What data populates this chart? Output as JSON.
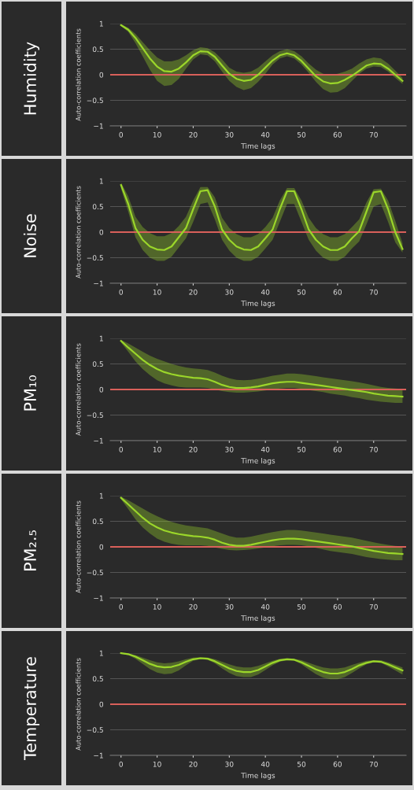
{
  "chart_data": [
    {
      "type": "line",
      "title": "Humidity",
      "xlabel": "Time lags",
      "ylabel": "Auto-correlation coefficients",
      "xlim": [
        -3,
        79
      ],
      "ylim": [
        -1,
        1
      ],
      "xticks": [
        0,
        10,
        20,
        30,
        40,
        50,
        60,
        70
      ],
      "yticks": [
        -1,
        -0.5,
        0,
        0.5,
        1
      ],
      "grid": "y",
      "legend": false,
      "x": [
        0,
        2,
        4,
        6,
        8,
        10,
        12,
        14,
        16,
        18,
        20,
        22,
        24,
        26,
        28,
        30,
        32,
        34,
        36,
        38,
        40,
        42,
        44,
        46,
        48,
        50,
        52,
        54,
        56,
        58,
        60,
        62,
        64,
        66,
        68,
        70,
        72,
        74,
        76,
        78
      ],
      "series": [
        {
          "color": "#9bd62a",
          "values": [
            0.97,
            0.88,
            0.72,
            0.52,
            0.32,
            0.16,
            0.07,
            0.06,
            0.12,
            0.24,
            0.38,
            0.46,
            0.45,
            0.35,
            0.18,
            0.02,
            -0.08,
            -0.12,
            -0.1,
            0.0,
            0.14,
            0.28,
            0.38,
            0.42,
            0.38,
            0.27,
            0.12,
            -0.03,
            -0.13,
            -0.17,
            -0.16,
            -0.1,
            -0.02,
            0.08,
            0.18,
            0.22,
            0.21,
            0.12,
            0.0,
            -0.12
          ],
          "lower": [
            0.95,
            0.84,
            0.62,
            0.36,
            0.1,
            -0.12,
            -0.22,
            -0.2,
            -0.08,
            0.12,
            0.3,
            0.4,
            0.38,
            0.26,
            0.06,
            -0.12,
            -0.24,
            -0.3,
            -0.26,
            -0.14,
            0.02,
            0.2,
            0.32,
            0.36,
            0.32,
            0.2,
            0.04,
            -0.14,
            -0.28,
            -0.35,
            -0.34,
            -0.26,
            -0.12,
            0.02,
            0.12,
            0.16,
            0.15,
            0.06,
            -0.06,
            -0.18
          ],
          "upper": [
            0.99,
            0.92,
            0.8,
            0.64,
            0.48,
            0.34,
            0.26,
            0.26,
            0.3,
            0.38,
            0.48,
            0.54,
            0.52,
            0.44,
            0.3,
            0.14,
            0.06,
            0.04,
            0.06,
            0.14,
            0.26,
            0.38,
            0.46,
            0.5,
            0.46,
            0.36,
            0.22,
            0.1,
            0.02,
            0.0,
            0.02,
            0.06,
            0.12,
            0.22,
            0.3,
            0.34,
            0.32,
            0.22,
            0.08,
            -0.06
          ]
        }
      ],
      "ref_lines": [
        {
          "axis": "y",
          "value": 0,
          "color": "#d9605a"
        }
      ]
    },
    {
      "type": "line",
      "title": "Noise",
      "xlabel": "Time lags",
      "ylabel": "Auto-correlation coefficients",
      "xlim": [
        -3,
        79
      ],
      "ylim": [
        -1,
        1
      ],
      "xticks": [
        0,
        10,
        20,
        30,
        40,
        50,
        60,
        70
      ],
      "yticks": [
        -1,
        -0.5,
        0,
        0.5,
        1
      ],
      "grid": "y",
      "legend": false,
      "x": [
        0,
        2,
        4,
        6,
        8,
        10,
        12,
        14,
        16,
        18,
        20,
        22,
        24,
        26,
        28,
        30,
        32,
        34,
        36,
        38,
        40,
        42,
        44,
        46,
        48,
        50,
        52,
        54,
        56,
        58,
        60,
        62,
        64,
        66,
        68,
        70,
        72,
        74,
        76,
        78
      ],
      "series": [
        {
          "color": "#9bd62a",
          "values": [
            0.92,
            0.55,
            0.08,
            -0.15,
            -0.28,
            -0.34,
            -0.35,
            -0.28,
            -0.1,
            0.08,
            0.45,
            0.8,
            0.82,
            0.5,
            0.05,
            -0.15,
            -0.28,
            -0.34,
            -0.35,
            -0.28,
            -0.12,
            0.05,
            0.45,
            0.8,
            0.8,
            0.45,
            0.05,
            -0.15,
            -0.28,
            -0.35,
            -0.35,
            -0.28,
            -0.12,
            0.02,
            0.4,
            0.78,
            0.8,
            0.45,
            0.0,
            -0.33
          ],
          "lower": [
            0.85,
            0.4,
            -0.1,
            -0.35,
            -0.5,
            -0.56,
            -0.56,
            -0.48,
            -0.3,
            -0.12,
            0.2,
            0.55,
            0.58,
            0.25,
            -0.15,
            -0.36,
            -0.5,
            -0.56,
            -0.56,
            -0.48,
            -0.32,
            -0.15,
            0.2,
            0.55,
            0.55,
            0.2,
            -0.15,
            -0.36,
            -0.5,
            -0.56,
            -0.56,
            -0.48,
            -0.32,
            -0.18,
            0.15,
            0.5,
            0.55,
            0.2,
            -0.2,
            -0.4
          ],
          "upper": [
            0.97,
            0.7,
            0.3,
            0.1,
            -0.02,
            -0.08,
            -0.08,
            -0.02,
            0.12,
            0.3,
            0.62,
            0.88,
            0.88,
            0.68,
            0.28,
            0.08,
            -0.04,
            -0.1,
            -0.1,
            -0.04,
            0.1,
            0.28,
            0.62,
            0.86,
            0.86,
            0.62,
            0.28,
            0.08,
            -0.04,
            -0.1,
            -0.1,
            -0.04,
            0.1,
            0.25,
            0.58,
            0.84,
            0.85,
            0.62,
            0.22,
            -0.22
          ]
        }
      ],
      "ref_lines": [
        {
          "axis": "y",
          "value": 0,
          "color": "#d9605a"
        }
      ]
    },
    {
      "type": "line",
      "title": "PM₁₀",
      "xlabel": "Time lags",
      "ylabel": "Auto-correlation coefficients",
      "xlim": [
        -3,
        79
      ],
      "ylim": [
        -1,
        1
      ],
      "xticks": [
        0,
        10,
        20,
        30,
        40,
        50,
        60,
        70
      ],
      "yticks": [
        -1,
        -0.5,
        0,
        0.5,
        1
      ],
      "grid": "y",
      "legend": false,
      "x": [
        0,
        2,
        4,
        6,
        8,
        10,
        12,
        14,
        16,
        18,
        20,
        22,
        24,
        26,
        28,
        30,
        32,
        34,
        36,
        38,
        40,
        42,
        44,
        46,
        48,
        50,
        52,
        54,
        56,
        58,
        60,
        62,
        64,
        66,
        68,
        70,
        72,
        74,
        76,
        78
      ],
      "series": [
        {
          "color": "#9bd62a",
          "values": [
            0.95,
            0.82,
            0.7,
            0.58,
            0.48,
            0.4,
            0.34,
            0.3,
            0.27,
            0.25,
            0.23,
            0.22,
            0.2,
            0.15,
            0.09,
            0.05,
            0.03,
            0.03,
            0.04,
            0.06,
            0.09,
            0.12,
            0.14,
            0.15,
            0.15,
            0.13,
            0.11,
            0.09,
            0.07,
            0.05,
            0.03,
            0.01,
            -0.01,
            -0.03,
            -0.05,
            -0.08,
            -0.1,
            -0.12,
            -0.13,
            -0.14
          ],
          "lower": [
            0.92,
            0.74,
            0.55,
            0.4,
            0.28,
            0.18,
            0.12,
            0.08,
            0.05,
            0.04,
            0.04,
            0.04,
            0.03,
            0.0,
            -0.03,
            -0.05,
            -0.06,
            -0.06,
            -0.05,
            -0.04,
            -0.02,
            0.0,
            0.02,
            0.03,
            0.03,
            0.01,
            -0.01,
            -0.03,
            -0.05,
            -0.08,
            -0.1,
            -0.12,
            -0.15,
            -0.17,
            -0.2,
            -0.22,
            -0.24,
            -0.25,
            -0.26,
            -0.26
          ],
          "upper": [
            0.97,
            0.9,
            0.82,
            0.74,
            0.66,
            0.6,
            0.55,
            0.5,
            0.46,
            0.43,
            0.41,
            0.4,
            0.38,
            0.33,
            0.27,
            0.22,
            0.19,
            0.18,
            0.19,
            0.21,
            0.24,
            0.27,
            0.29,
            0.31,
            0.31,
            0.3,
            0.28,
            0.26,
            0.24,
            0.22,
            0.2,
            0.18,
            0.16,
            0.14,
            0.11,
            0.08,
            0.05,
            0.03,
            0.02,
            0.01
          ]
        }
      ],
      "ref_lines": [
        {
          "axis": "y",
          "value": 0,
          "color": "#d9605a"
        }
      ]
    },
    {
      "type": "line",
      "title": "PM₂.₅",
      "xlabel": "Time lags",
      "ylabel": "Auto-correlation coefficients",
      "xlim": [
        -3,
        79
      ],
      "ylim": [
        -1,
        1
      ],
      "xticks": [
        0,
        10,
        20,
        30,
        40,
        50,
        60,
        70
      ],
      "yticks": [
        -1,
        -0.5,
        0,
        0.5,
        1
      ],
      "grid": "y",
      "legend": false,
      "x": [
        0,
        2,
        4,
        6,
        8,
        10,
        12,
        14,
        16,
        18,
        20,
        22,
        24,
        26,
        28,
        30,
        32,
        34,
        36,
        38,
        40,
        42,
        44,
        46,
        48,
        50,
        52,
        54,
        56,
        58,
        60,
        62,
        64,
        66,
        68,
        70,
        72,
        74,
        76,
        78
      ],
      "series": [
        {
          "color": "#9bd62a",
          "values": [
            0.96,
            0.83,
            0.7,
            0.57,
            0.46,
            0.38,
            0.32,
            0.28,
            0.25,
            0.23,
            0.21,
            0.2,
            0.18,
            0.14,
            0.08,
            0.04,
            0.02,
            0.02,
            0.04,
            0.07,
            0.1,
            0.13,
            0.15,
            0.16,
            0.16,
            0.15,
            0.13,
            0.11,
            0.09,
            0.07,
            0.05,
            0.03,
            0.01,
            -0.02,
            -0.05,
            -0.08,
            -0.1,
            -0.12,
            -0.13,
            -0.14
          ],
          "lower": [
            0.93,
            0.74,
            0.54,
            0.38,
            0.26,
            0.16,
            0.1,
            0.06,
            0.04,
            0.03,
            0.03,
            0.03,
            0.02,
            -0.01,
            -0.04,
            -0.06,
            -0.07,
            -0.06,
            -0.05,
            -0.03,
            -0.01,
            0.01,
            0.03,
            0.04,
            0.04,
            0.03,
            0.01,
            -0.02,
            -0.05,
            -0.08,
            -0.1,
            -0.12,
            -0.14,
            -0.17,
            -0.2,
            -0.22,
            -0.24,
            -0.25,
            -0.26,
            -0.26
          ],
          "upper": [
            0.98,
            0.91,
            0.83,
            0.75,
            0.67,
            0.6,
            0.54,
            0.49,
            0.45,
            0.42,
            0.4,
            0.38,
            0.36,
            0.31,
            0.26,
            0.21,
            0.18,
            0.18,
            0.2,
            0.23,
            0.26,
            0.29,
            0.31,
            0.33,
            0.33,
            0.32,
            0.3,
            0.28,
            0.26,
            0.24,
            0.22,
            0.2,
            0.18,
            0.15,
            0.12,
            0.09,
            0.06,
            0.04,
            0.02,
            0.01
          ]
        }
      ],
      "ref_lines": [
        {
          "axis": "y",
          "value": 0,
          "color": "#d9605a"
        }
      ]
    },
    {
      "type": "line",
      "title": "Temperature",
      "xlabel": "Time lags",
      "ylabel": "Auto-correlation coefficients",
      "xlim": [
        -3,
        79
      ],
      "ylim": [
        -1,
        1
      ],
      "xticks": [
        0,
        10,
        20,
        30,
        40,
        50,
        60,
        70
      ],
      "yticks": [
        -1,
        -0.5,
        0,
        0.5,
        1
      ],
      "grid": "y",
      "legend": false,
      "x": [
        0,
        2,
        4,
        6,
        8,
        10,
        12,
        14,
        16,
        18,
        20,
        22,
        24,
        26,
        28,
        30,
        32,
        34,
        36,
        38,
        40,
        42,
        44,
        46,
        48,
        50,
        52,
        54,
        56,
        58,
        60,
        62,
        64,
        66,
        68,
        70,
        72,
        74,
        76,
        78
      ],
      "series": [
        {
          "color": "#9bd62a",
          "values": [
            1.0,
            0.98,
            0.93,
            0.86,
            0.79,
            0.74,
            0.72,
            0.73,
            0.77,
            0.83,
            0.88,
            0.9,
            0.89,
            0.84,
            0.77,
            0.7,
            0.65,
            0.63,
            0.63,
            0.67,
            0.74,
            0.81,
            0.86,
            0.88,
            0.87,
            0.82,
            0.75,
            0.68,
            0.63,
            0.6,
            0.6,
            0.63,
            0.69,
            0.76,
            0.81,
            0.84,
            0.83,
            0.78,
            0.72,
            0.66
          ],
          "lower": [
            0.99,
            0.96,
            0.89,
            0.79,
            0.69,
            0.62,
            0.59,
            0.6,
            0.66,
            0.76,
            0.85,
            0.88,
            0.87,
            0.8,
            0.7,
            0.61,
            0.55,
            0.53,
            0.53,
            0.58,
            0.67,
            0.76,
            0.83,
            0.86,
            0.85,
            0.78,
            0.68,
            0.59,
            0.52,
            0.49,
            0.49,
            0.53,
            0.61,
            0.7,
            0.78,
            0.82,
            0.81,
            0.74,
            0.66,
            0.58
          ],
          "upper": [
            1.0,
            0.99,
            0.96,
            0.91,
            0.86,
            0.82,
            0.8,
            0.81,
            0.84,
            0.88,
            0.91,
            0.92,
            0.91,
            0.88,
            0.83,
            0.78,
            0.74,
            0.72,
            0.72,
            0.75,
            0.8,
            0.85,
            0.89,
            0.9,
            0.89,
            0.86,
            0.81,
            0.76,
            0.72,
            0.7,
            0.7,
            0.72,
            0.77,
            0.81,
            0.85,
            0.86,
            0.86,
            0.82,
            0.77,
            0.72
          ]
        }
      ],
      "ref_lines": [
        {
          "axis": "y",
          "value": 0,
          "color": "#d9605a"
        }
      ]
    }
  ]
}
